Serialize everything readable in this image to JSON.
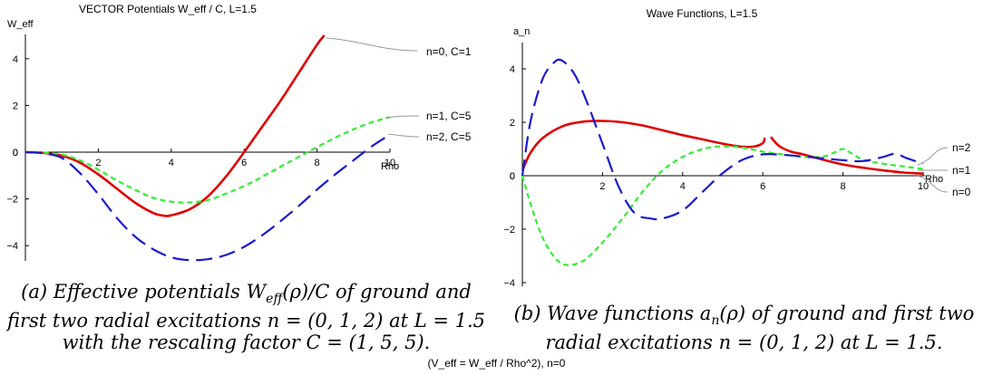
{
  "chart_data": [
    {
      "type": "line",
      "title": "VECTOR Potentials W_eff / C, L=1.5",
      "xlabel": "Rho",
      "ylabel": "W_eff",
      "xlim": [
        0,
        10
      ],
      "ylim": [
        -5.2,
        5.5
      ],
      "xticks": [
        2,
        4,
        6,
        8,
        10
      ],
      "yticks": [
        -4,
        -2,
        0,
        2,
        4
      ],
      "series": [
        {
          "name": "n=0, C=1",
          "color": "#e00000",
          "dash": "solid",
          "x": [
            0,
            0.5,
            1,
            1.5,
            2,
            2.5,
            3,
            3.5,
            3.8,
            4,
            4.5,
            5,
            5.5,
            6,
            6.5,
            7,
            7.5,
            8,
            8.2
          ],
          "y": [
            0,
            -0.03,
            -0.15,
            -0.45,
            -0.95,
            -1.55,
            -2.15,
            -2.6,
            -2.72,
            -2.7,
            -2.45,
            -1.9,
            -1.05,
            0,
            1.1,
            2.2,
            3.4,
            4.6,
            5.0
          ]
        },
        {
          "name": "n=1, C=5",
          "color": "#33ee33",
          "dash": "short",
          "x": [
            0,
            0.5,
            1,
            1.5,
            2,
            2.5,
            3,
            3.5,
            4,
            4.5,
            5,
            5.5,
            6,
            6.5,
            7,
            7.5,
            8,
            8.5,
            9,
            9.5,
            10
          ],
          "y": [
            0,
            -0.02,
            -0.1,
            -0.35,
            -0.75,
            -1.2,
            -1.6,
            -1.95,
            -2.12,
            -2.15,
            -2.05,
            -1.78,
            -1.45,
            -1.05,
            -0.62,
            -0.2,
            0.22,
            0.62,
            0.98,
            1.28,
            1.5
          ]
        },
        {
          "name": "n=2, C=5",
          "color": "#1a1acc",
          "dash": "long",
          "x": [
            0,
            0.5,
            1,
            1.5,
            2,
            2.5,
            3,
            3.5,
            4,
            4.5,
            5,
            5.5,
            6,
            6.5,
            7,
            7.5,
            8,
            8.5,
            9,
            9.5,
            10
          ],
          "y": [
            0,
            -0.05,
            -0.25,
            -0.9,
            -1.8,
            -2.8,
            -3.6,
            -4.15,
            -4.5,
            -4.62,
            -4.58,
            -4.4,
            -4.05,
            -3.55,
            -2.95,
            -2.3,
            -1.6,
            -0.95,
            -0.35,
            0.25,
            0.75
          ]
        }
      ],
      "caption": "(a) Effective potentials W_eff(ρ)/C of ground and first two radial excitations n = (0,1,2) at L = 1.5 with the rescaling factor C = (1,5,5)."
    },
    {
      "type": "line",
      "title": "Wave Functions, L=1.5",
      "xlabel": "Rho",
      "ylabel": "a_n",
      "xlim": [
        0,
        10
      ],
      "ylim": [
        -4.1,
        5.2
      ],
      "xticks": [
        2,
        4,
        6,
        8,
        10
      ],
      "yticks": [
        -4,
        -2,
        0,
        2,
        4
      ],
      "series": [
        {
          "name": "n=0",
          "color": "#e00000",
          "dash": "solid",
          "segments": [
            {
              "x": [
                0,
                0.2,
                0.5,
                1,
                1.5,
                2,
                2.5,
                3,
                3.5,
                4,
                4.5,
                5,
                5.5,
                5.8,
                6.0,
                6.05
              ],
              "y": [
                0.2,
                0.85,
                1.4,
                1.85,
                2.02,
                2.05,
                2.0,
                1.88,
                1.7,
                1.52,
                1.36,
                1.2,
                1.08,
                1.1,
                1.22,
                1.42
              ]
            },
            {
              "x": [
                6.2,
                6.4,
                6.7,
                7,
                7.5,
                8,
                8.5,
                9,
                9.5,
                10
              ],
              "y": [
                1.45,
                1.12,
                0.9,
                0.8,
                0.6,
                0.42,
                0.3,
                0.2,
                0.12,
                0.08
              ]
            }
          ]
        },
        {
          "name": "n=1",
          "color": "#33ee33",
          "dash": "short",
          "segments": [
            {
              "x": [
                0,
                0.3,
                0.6,
                1,
                1.5,
                2,
                2.5,
                3,
                3.5,
                4,
                4.5,
                5,
                5.5,
                6,
                6.5,
                7,
                7.5,
                7.8,
                8.0,
                8.2,
                8.5,
                9,
                9.5,
                10
              ],
              "y": [
                0,
                -1.5,
                -2.6,
                -3.3,
                -3.2,
                -2.5,
                -1.6,
                -0.6,
                0.2,
                0.7,
                1.0,
                1.1,
                1.05,
                0.9,
                0.8,
                0.7,
                0.72,
                0.88,
                1.0,
                0.85,
                0.6,
                0.45,
                0.35,
                0.25
              ]
            }
          ]
        },
        {
          "name": "n=2",
          "color": "#1a1acc",
          "dash": "long",
          "segments": [
            {
              "x": [
                0,
                0.2,
                0.5,
                0.8,
                1.0,
                1.3,
                1.6,
                2.0,
                2.4,
                2.8,
                3.2,
                3.5,
                4.0,
                4.5,
                5.0,
                5.5,
                6.0,
                6.5,
                7.0,
                7.5,
                8.0,
                8.5,
                9.0,
                9.3,
                9.6,
                10.0
              ],
              "y": [
                0,
                2.0,
                3.6,
                4.25,
                4.3,
                3.8,
                2.8,
                1.2,
                -0.4,
                -1.4,
                -1.6,
                -1.6,
                -1.3,
                -0.6,
                0.1,
                0.6,
                0.8,
                0.78,
                0.72,
                0.65,
                0.58,
                0.55,
                0.7,
                0.82,
                0.65,
                0.45
              ]
            }
          ]
        }
      ],
      "caption": "(b) Wave functions a_n(ρ) of ground and first two radial excitations n = (0,1,2) at L = 1.5."
    }
  ],
  "labels": {
    "left": {
      "title": "VECTOR Potentials W_eff / C, L=1.5",
      "ylabel": "W_eff",
      "xlabel": "Rho",
      "n0": "n=0, C=1",
      "n1": "n=1, C=5",
      "n2": "n=2, C=5"
    },
    "right": {
      "title": "Wave Functions, L=1.5",
      "ylabel": "a_n",
      "xlabel": "Rho",
      "n0": "n=0",
      "n1": "n=1",
      "n2": "n=2"
    }
  },
  "captions": {
    "a_line1": "(a) Effective potentials",
    "a_line1b": "of ground and",
    "a_line2": "first two radial excitations",
    "a_line2b": "at",
    "a_line3": "with the rescaling factor",
    "b_line1": "(b) Wave functions",
    "b_line1b": "of ground and first two",
    "b_line2": "radial excitations",
    "b_line2b": "at"
  },
  "footer": "(V_eff  = W_eff / Rho^2), n=0"
}
